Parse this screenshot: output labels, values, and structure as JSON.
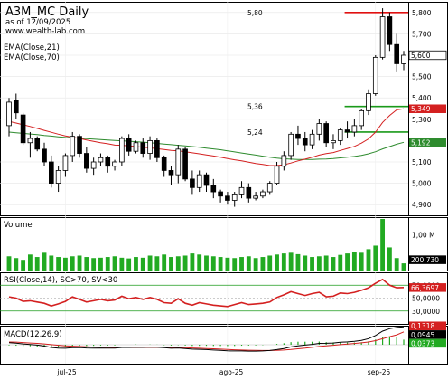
{
  "header": {
    "title": "A3M_MC Daily",
    "date_line": "as of 12/09/2025",
    "site": "www.wealth-lab.com",
    "ema_labels": [
      "EMA(Close,21)",
      "EMA(Close,70)"
    ]
  },
  "colors": {
    "up_candle": "#ffffff",
    "down_candle": "#000000",
    "ema21": "#d42020",
    "ema70": "#2e8b2e",
    "level_red": "#e01010",
    "level_green": "#1a9a1a",
    "volume_bar": "#22aa22",
    "rsi_line": "#d42020",
    "macd_line": "#000000",
    "macd_signal": "#d42020",
    "macd_hist": "#22aa22",
    "price_badge": "#000000",
    "ema21_badge": "#d42020",
    "ema70_badge": "#2e8b2e"
  },
  "chart_data": [
    {
      "type": "candlestick",
      "panel": "price",
      "ylim": [
        4850,
        5850
      ],
      "y_ticks": [
        "5,800",
        "5,700",
        "5,600",
        "5,500",
        "5,400",
        "5,300",
        "5,100",
        "5,000",
        "4,900"
      ],
      "x_labels": [
        "jul-25",
        "ago-25",
        "sep-25"
      ],
      "x_label_bar_index": [
        8,
        31,
        52
      ],
      "ohlc": [
        [
          5270,
          5400,
          5220,
          5380
        ],
        [
          5390,
          5420,
          5300,
          5330
        ],
        [
          5320,
          5330,
          5180,
          5190
        ],
        [
          5190,
          5240,
          5120,
          5210
        ],
        [
          5210,
          5220,
          5150,
          5160
        ],
        [
          5160,
          5190,
          5080,
          5100
        ],
        [
          5100,
          5130,
          4980,
          5000
        ],
        [
          5000,
          5080,
          4960,
          5060
        ],
        [
          5060,
          5140,
          5030,
          5130
        ],
        [
          5130,
          5240,
          5100,
          5220
        ],
        [
          5220,
          5230,
          5120,
          5140
        ],
        [
          5140,
          5170,
          5050,
          5070
        ],
        [
          5070,
          5120,
          5040,
          5100
        ],
        [
          5100,
          5140,
          5080,
          5120
        ],
        [
          5120,
          5130,
          5050,
          5080
        ],
        [
          5080,
          5110,
          5060,
          5100
        ],
        [
          5100,
          5220,
          5080,
          5210
        ],
        [
          5210,
          5230,
          5130,
          5150
        ],
        [
          5150,
          5200,
          5140,
          5190
        ],
        [
          5190,
          5210,
          5120,
          5140
        ],
        [
          5140,
          5220,
          5110,
          5200
        ],
        [
          5200,
          5210,
          5100,
          5120
        ],
        [
          5120,
          5130,
          5030,
          5060
        ],
        [
          5060,
          5080,
          4990,
          5040
        ],
        [
          5040,
          5180,
          5000,
          5160
        ],
        [
          5160,
          5170,
          5010,
          5020
        ],
        [
          5020,
          5060,
          4950,
          4980
        ],
        [
          4980,
          5060,
          4960,
          5040
        ],
        [
          5040,
          5050,
          4960,
          4990
        ],
        [
          4990,
          5020,
          4930,
          4960
        ],
        [
          4960,
          4970,
          4910,
          4940
        ],
        [
          4940,
          4960,
          4900,
          4920
        ],
        [
          4920,
          4960,
          4890,
          4950
        ],
        [
          4950,
          5010,
          4930,
          4980
        ],
        [
          4980,
          5000,
          4910,
          4930
        ],
        [
          4930,
          4960,
          4920,
          4940
        ],
        [
          4940,
          4970,
          4930,
          4960
        ],
        [
          4960,
          5010,
          4950,
          5000
        ],
        [
          5000,
          5100,
          4990,
          5080
        ],
        [
          5080,
          5150,
          5060,
          5130
        ],
        [
          5130,
          5240,
          5110,
          5230
        ],
        [
          5230,
          5270,
          5180,
          5210
        ],
        [
          5210,
          5240,
          5150,
          5180
        ],
        [
          5180,
          5250,
          5160,
          5230
        ],
        [
          5230,
          5300,
          5200,
          5280
        ],
        [
          5280,
          5290,
          5170,
          5190
        ],
        [
          5190,
          5230,
          5160,
          5200
        ],
        [
          5200,
          5260,
          5180,
          5250
        ],
        [
          5250,
          5290,
          5210,
          5240
        ],
        [
          5240,
          5300,
          5220,
          5270
        ],
        [
          5270,
          5350,
          5250,
          5340
        ],
        [
          5340,
          5440,
          5320,
          5420
        ],
        [
          5420,
          5600,
          5410,
          5590
        ],
        [
          5590,
          5820,
          5580,
          5780
        ],
        [
          5780,
          5800,
          5620,
          5650
        ],
        [
          5650,
          5700,
          5520,
          5560
        ],
        [
          5560,
          5620,
          5530,
          5600
        ]
      ],
      "ema21": [
        5290,
        5282,
        5274,
        5266,
        5257,
        5248,
        5239,
        5230,
        5222,
        5216,
        5210,
        5203,
        5196,
        5190,
        5185,
        5179,
        5178,
        5175,
        5172,
        5169,
        5166,
        5162,
        5158,
        5154,
        5152,
        5148,
        5143,
        5138,
        5133,
        5128,
        5122,
        5116,
        5110,
        5105,
        5099,
        5093,
        5088,
        5083,
        5083,
        5087,
        5095,
        5105,
        5113,
        5122,
        5132,
        5139,
        5144,
        5154,
        5163,
        5173,
        5188,
        5208,
        5240,
        5285,
        5318,
        5344,
        5349
      ],
      "ema70": [
        5240,
        5237,
        5234,
        5231,
        5228,
        5224,
        5221,
        5218,
        5215,
        5213,
        5211,
        5209,
        5207,
        5205,
        5203,
        5201,
        5199,
        5197,
        5195,
        5193,
        5190,
        5187,
        5184,
        5181,
        5178,
        5175,
        5172,
        5169,
        5165,
        5161,
        5157,
        5152,
        5147,
        5142,
        5137,
        5132,
        5127,
        5122,
        5118,
        5115,
        5113,
        5112,
        5112,
        5112,
        5113,
        5114,
        5116,
        5119,
        5122,
        5126,
        5131,
        5138,
        5148,
        5161,
        5172,
        5183,
        5192
      ],
      "levels": [
        {
          "label": "5,80",
          "value": 5800,
          "color": "red",
          "from_bar": 48
        },
        {
          "label": "5,36",
          "value": 5360,
          "color": "green",
          "from_bar": 48
        },
        {
          "label": "5,24",
          "value": 5240,
          "color": "green",
          "from_bar": 48
        }
      ],
      "badges": [
        {
          "text": "5,600",
          "value": 5600,
          "kind": "price"
        },
        {
          "text": "5,349",
          "value": 5349,
          "kind": "ema21"
        },
        {
          "text": "5,192",
          "value": 5192,
          "kind": "ema70"
        }
      ]
    },
    {
      "type": "bar",
      "panel": "volume",
      "title": "Volume",
      "ylim": [
        0,
        1500000
      ],
      "y_ticks": [
        "1,00 M"
      ],
      "values": [
        400000,
        350000,
        300000,
        450000,
        380000,
        500000,
        420000,
        380000,
        360000,
        400000,
        420000,
        380000,
        350000,
        360000,
        380000,
        400000,
        360000,
        340000,
        380000,
        360000,
        420000,
        400000,
        450000,
        380000,
        400000,
        420000,
        480000,
        450000,
        420000,
        400000,
        380000,
        360000,
        350000,
        380000,
        400000,
        350000,
        380000,
        420000,
        450000,
        480000,
        500000,
        460000,
        420000,
        380000,
        400000,
        420000,
        380000,
        440000,
        480000,
        520000,
        500000,
        600000,
        700000,
        1450000,
        650000,
        350000,
        200730
      ],
      "badge": "200.730"
    },
    {
      "type": "line",
      "panel": "rsi",
      "title": "RSI(Close,14), SC>70, SV<30",
      "ylim": [
        10,
        90
      ],
      "y_ticks": [
        "70,0000",
        "50,0000",
        "30,0000"
      ],
      "thresholds": [
        70,
        30
      ],
      "values": [
        52,
        50,
        45,
        46,
        44,
        42,
        38,
        41,
        45,
        52,
        48,
        44,
        46,
        48,
        46,
        47,
        53,
        49,
        51,
        48,
        51,
        48,
        43,
        42,
        49,
        42,
        39,
        43,
        41,
        39,
        38,
        37,
        40,
        43,
        40,
        41,
        42,
        44,
        51,
        55,
        60,
        57,
        54,
        57,
        59,
        52,
        53,
        58,
        57,
        59,
        62,
        66,
        73,
        79,
        70,
        66,
        66.3697
      ],
      "badge": "66,3697"
    },
    {
      "type": "line",
      "panel": "macd",
      "title": "MACD(12,26,9)",
      "ylim": [
        -0.14,
        0.14
      ],
      "macd": [
        0.015,
        0.012,
        0.006,
        0.002,
        -0.003,
        -0.01,
        -0.02,
        -0.025,
        -0.026,
        -0.022,
        -0.021,
        -0.024,
        -0.025,
        -0.024,
        -0.025,
        -0.025,
        -0.02,
        -0.02,
        -0.018,
        -0.019,
        -0.017,
        -0.018,
        -0.022,
        -0.026,
        -0.024,
        -0.028,
        -0.033,
        -0.034,
        -0.036,
        -0.039,
        -0.042,
        -0.045,
        -0.046,
        -0.046,
        -0.047,
        -0.047,
        -0.046,
        -0.043,
        -0.036,
        -0.028,
        -0.016,
        -0.008,
        -0.003,
        0.003,
        0.01,
        0.011,
        0.013,
        0.018,
        0.021,
        0.025,
        0.032,
        0.045,
        0.068,
        0.1,
        0.118,
        0.127,
        0.1318
      ],
      "signal": [
        0.02,
        0.019,
        0.016,
        0.013,
        0.01,
        0.006,
        0.001,
        -0.004,
        -0.008,
        -0.011,
        -0.013,
        -0.015,
        -0.017,
        -0.018,
        -0.019,
        -0.02,
        -0.02,
        -0.02,
        -0.02,
        -0.019,
        -0.019,
        -0.019,
        -0.019,
        -0.02,
        -0.021,
        -0.022,
        -0.024,
        -0.026,
        -0.028,
        -0.03,
        -0.033,
        -0.035,
        -0.037,
        -0.039,
        -0.041,
        -0.042,
        -0.043,
        -0.043,
        -0.042,
        -0.039,
        -0.035,
        -0.03,
        -0.025,
        -0.019,
        -0.013,
        -0.008,
        -0.004,
        0.001,
        0.005,
        0.009,
        0.014,
        0.02,
        0.03,
        0.044,
        0.059,
        0.073,
        0.0945
      ],
      "hist": [
        -0.005,
        -0.007,
        -0.01,
        -0.011,
        -0.013,
        -0.016,
        -0.021,
        -0.021,
        -0.018,
        -0.011,
        -0.008,
        -0.009,
        -0.008,
        -0.006,
        -0.006,
        -0.005,
        0.0,
        0.0,
        0.002,
        0.0,
        0.002,
        0.001,
        -0.003,
        -0.006,
        -0.003,
        -0.006,
        -0.009,
        -0.008,
        -0.008,
        -0.009,
        -0.009,
        -0.01,
        -0.009,
        -0.007,
        -0.006,
        -0.005,
        -0.003,
        0.0,
        0.006,
        0.011,
        0.019,
        0.022,
        0.022,
        0.022,
        0.023,
        0.019,
        0.017,
        0.017,
        0.016,
        0.016,
        0.018,
        0.025,
        0.038,
        0.056,
        0.059,
        0.054,
        0.0373
      ],
      "badges": [
        "0,1318",
        "0,0945",
        "0,0373"
      ]
    }
  ]
}
